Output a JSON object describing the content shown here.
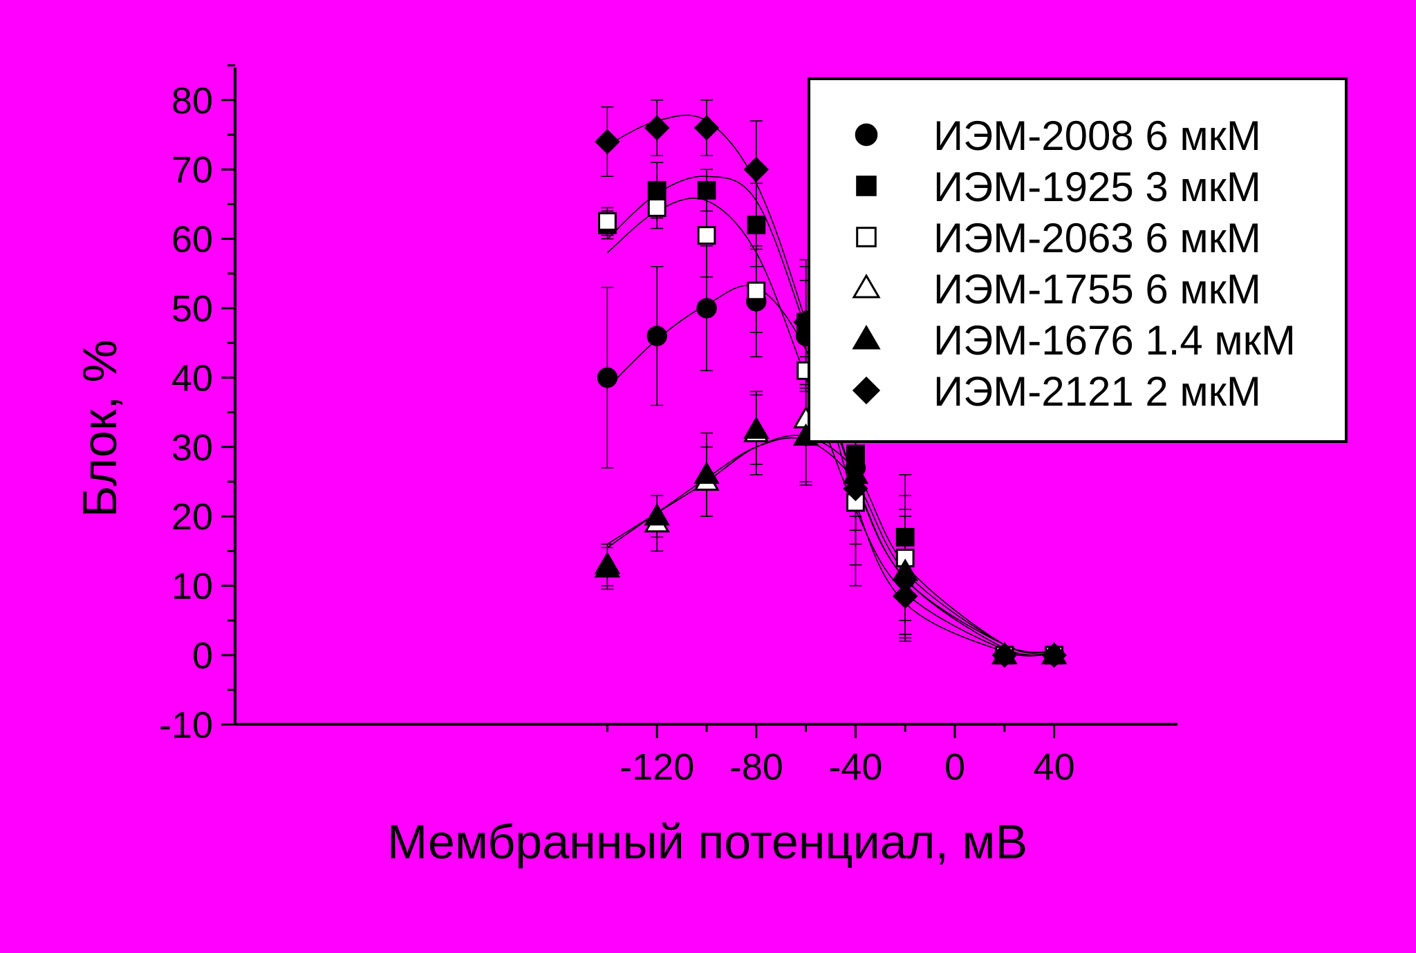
{
  "background": "#ff00ff",
  "chart_data": {
    "type": "scatter",
    "title": "",
    "xlabel": "Мембранный потенциал, мВ",
    "ylabel": "Блок, %",
    "xlim": [
      -145,
      45
    ],
    "ylim": [
      -10,
      90
    ],
    "xticks": [
      -120,
      -80,
      -40,
      0,
      40
    ],
    "xtick_labels": [
      "-120",
      "-80",
      "-40",
      "0",
      "40"
    ],
    "yticks": [
      -10,
      0,
      10,
      20,
      30,
      40,
      50,
      60,
      70,
      80
    ],
    "ytick_labels": [
      "-10",
      "0",
      "10",
      "20",
      "30",
      "40",
      "50",
      "60",
      "70",
      "80"
    ],
    "grid": false,
    "legend_position": "top-right",
    "series": [
      {
        "name": "ИЭМ-2008 6 мкМ",
        "marker": "circle",
        "fill": "#000000",
        "x": [
          -140,
          -120,
          -100,
          -80,
          -60,
          -40,
          -20,
          20,
          40
        ],
        "y": [
          40,
          46,
          50,
          51,
          46,
          27,
          11,
          0,
          0
        ],
        "err": [
          13,
          10,
          9,
          8,
          8,
          9,
          9,
          0,
          0
        ],
        "fit_y": [
          38.5,
          45.5,
          50.5,
          53,
          44,
          25,
          11,
          1.5,
          0.5
        ]
      },
      {
        "name": "ИЭМ-1925 3 мкМ",
        "marker": "square",
        "fill": "#000000",
        "x": [
          -140,
          -120,
          -100,
          -80,
          -60,
          -40,
          -20,
          20,
          40
        ],
        "y": [
          62,
          67,
          67,
          62,
          48,
          29,
          17,
          0,
          0
        ],
        "err": [
          2,
          4,
          3,
          6,
          8,
          9,
          9,
          0,
          0
        ],
        "fit_y": [
          60,
          66.5,
          69,
          65.5,
          47,
          25,
          11,
          1,
          0.3
        ]
      },
      {
        "name": "ИЭМ-2063 6 мкМ",
        "marker": "square",
        "fill": "#ffffff",
        "x": [
          -140,
          -120,
          -100,
          -80,
          -60,
          -40,
          -20,
          20,
          40
        ],
        "y": [
          62.5,
          64.5,
          60.5,
          52.5,
          41,
          22,
          14,
          0,
          0
        ],
        "err": [
          2,
          3,
          6,
          6,
          7,
          9,
          9,
          0,
          0
        ],
        "fit_y": [
          58,
          64,
          65.5,
          58,
          40,
          21,
          9,
          0.8,
          0.3
        ]
      },
      {
        "name": "ИЭМ-1755 6 мкМ",
        "marker": "triangle",
        "fill": "#ffffff",
        "x": [
          -140,
          -120,
          -100,
          -80,
          -60,
          -40,
          -20,
          20,
          40
        ],
        "y": [
          13,
          19,
          25,
          32,
          34,
          26,
          12,
          0,
          0
        ],
        "err": [
          3,
          4,
          5,
          6,
          9,
          10,
          9,
          0,
          0
        ],
        "fit_y": [
          15.5,
          20.5,
          25.5,
          30,
          31,
          25,
          12,
          1.5,
          0.5
        ]
      },
      {
        "name": "ИЭМ-1676 1.4 мкМ",
        "marker": "triangle",
        "fill": "#000000",
        "x": [
          -140,
          -120,
          -100,
          -80,
          -60,
          -40,
          -20,
          20,
          40
        ],
        "y": [
          12.5,
          20,
          26,
          32.5,
          31.5,
          26,
          12,
          0,
          0
        ],
        "err": [
          3,
          3,
          6,
          5,
          7,
          8,
          9,
          0,
          0
        ],
        "fit_y": [
          16,
          20.5,
          25,
          30,
          31.5,
          26.5,
          13,
          1.5,
          0.5
        ]
      },
      {
        "name": "ИЭМ-2121 2 мкМ",
        "marker": "diamond",
        "fill": "#000000",
        "x": [
          -140,
          -120,
          -100,
          -80,
          -60,
          -40,
          -20,
          20,
          40
        ],
        "y": [
          74,
          76,
          76,
          70,
          48,
          24,
          8.5,
          0,
          0
        ],
        "err": [
          5,
          4,
          4,
          7,
          9,
          14,
          6,
          0,
          0
        ],
        "fit_y": [
          73.5,
          77,
          77,
          68,
          48,
          22,
          7.5,
          0.5,
          0.2
        ]
      }
    ]
  }
}
